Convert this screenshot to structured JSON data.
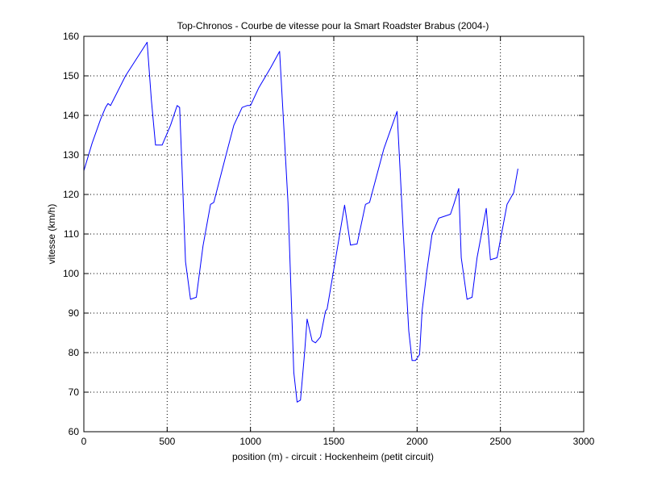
{
  "chart_data": {
    "type": "line",
    "title": "Top-Chronos - Courbe de vitesse pour la Smart Roadster Brabus (2004-)",
    "xlabel": "position (m) - circuit : Hockenheim (petit circuit)",
    "ylabel": "vitesse (km/h)",
    "xlim": [
      0,
      3000
    ],
    "ylim": [
      60,
      160
    ],
    "xticks": [
      0,
      500,
      1000,
      1500,
      2000,
      2500,
      3000
    ],
    "yticks": [
      60,
      70,
      80,
      90,
      100,
      110,
      120,
      130,
      140,
      150,
      160
    ],
    "grid": true,
    "series": [
      {
        "color": "#0000ff",
        "x": [
          0,
          50,
          100,
          130,
          145,
          160,
          250,
          380,
          405,
          430,
          470,
          520,
          560,
          575,
          590,
          610,
          640,
          675,
          715,
          760,
          780,
          850,
          900,
          950,
          980,
          1000,
          1050,
          1120,
          1175,
          1225,
          1260,
          1280,
          1300,
          1325,
          1340,
          1370,
          1390,
          1420,
          1450,
          1460,
          1520,
          1565,
          1600,
          1640,
          1690,
          1715,
          1800,
          1880,
          1920,
          1950,
          1970,
          1990,
          2015,
          2030,
          2060,
          2090,
          2130,
          2200,
          2220,
          2250,
          2265,
          2300,
          2330,
          2360,
          2415,
          2440,
          2480,
          2540,
          2580,
          2605
        ],
        "values": [
          126,
          133,
          139,
          142,
          143,
          142.5,
          150,
          158.5,
          144,
          132.5,
          132.5,
          137.5,
          142.5,
          142,
          126,
          103,
          93.5,
          94,
          107,
          117.5,
          118,
          129.5,
          137.5,
          142,
          142.5,
          142.5,
          147,
          152,
          156.2,
          118,
          75,
          67.5,
          68,
          80,
          88.5,
          83,
          82.5,
          84,
          90.5,
          91,
          106,
          117.3,
          107.2,
          107.5,
          117.5,
          118,
          131.5,
          141,
          108,
          85.5,
          78,
          78,
          79.5,
          90.5,
          101,
          110,
          114,
          115,
          117.5,
          121.5,
          104,
          93.5,
          94,
          104,
          116.5,
          103.5,
          104,
          117.5,
          120.5,
          126.5
        ]
      }
    ]
  }
}
